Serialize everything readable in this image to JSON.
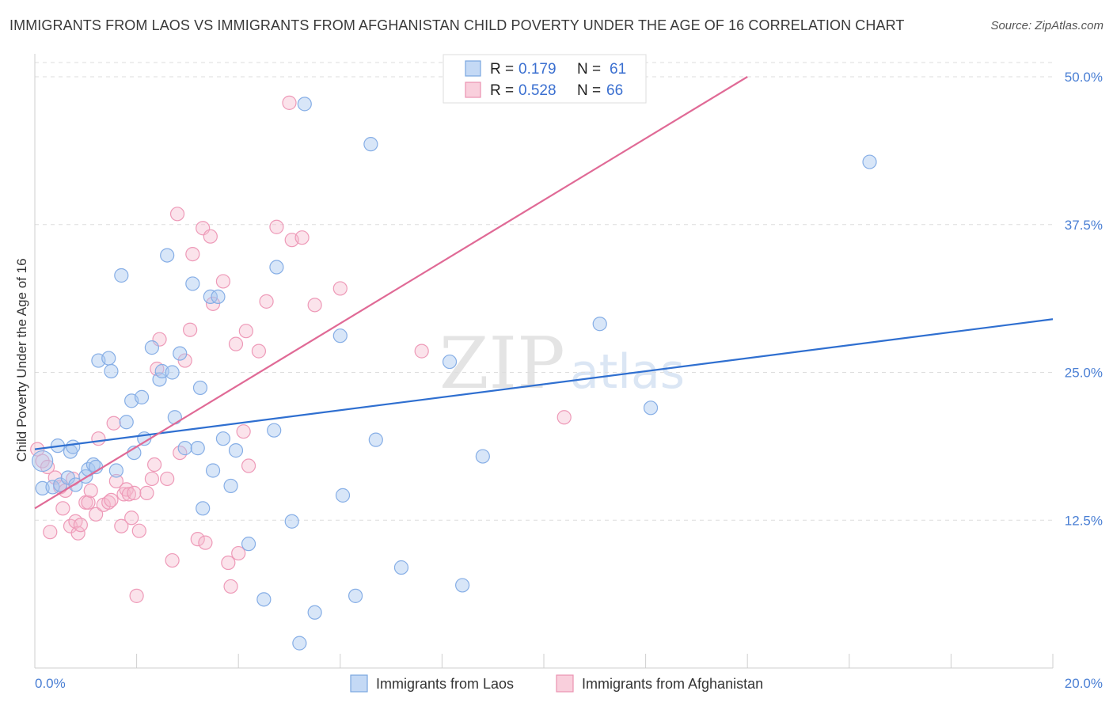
{
  "header": {
    "title": "IMMIGRANTS FROM LAOS VS IMMIGRANTS FROM AFGHANISTAN CHILD POVERTY UNDER THE AGE OF 16 CORRELATION CHART",
    "source": "Source: ZipAtlas.com"
  },
  "watermark": {
    "zip": "ZIP",
    "atlas": "atlas"
  },
  "chart_data": {
    "type": "scatter",
    "title": "IMMIGRANTS FROM LAOS VS IMMIGRANTS FROM AFGHANISTAN CHILD POVERTY UNDER THE AGE OF 16 CORRELATION CHART",
    "xlabel": "",
    "ylabel": "Child Poverty Under the Age of 16",
    "xlim": [
      0,
      20
    ],
    "ylim": [
      0,
      50
    ],
    "x_tick_labels": [
      "0.0%",
      "20.0%"
    ],
    "y_ticks": [
      12.5,
      25.0,
      37.5,
      50.0
    ],
    "y_tick_labels": [
      "12.5%",
      "25.0%",
      "37.5%",
      "50.0%"
    ],
    "grid": true,
    "legend_position": "top-center",
    "legend": [
      {
        "r_label": "R =",
        "r_value": "0.179",
        "n_label": "N =",
        "n_value": "61"
      },
      {
        "r_label": "R =",
        "r_value": "0.528",
        "n_label": "N =",
        "n_value": "66"
      }
    ],
    "series": [
      {
        "name": "Immigrants from Laos",
        "color": "#a8c8f0",
        "line_color": "#2f6fd0",
        "trend": {
          "x": [
            0,
            20
          ],
          "y": [
            18.5,
            29.5
          ]
        },
        "points": [
          [
            0.15,
            17.5
          ],
          [
            0.15,
            15.2
          ],
          [
            0.35,
            15.3
          ],
          [
            0.45,
            18.8
          ],
          [
            0.5,
            15.5
          ],
          [
            0.65,
            16.1
          ],
          [
            0.7,
            18.3
          ],
          [
            0.75,
            18.7
          ],
          [
            0.8,
            15.5
          ],
          [
            1.0,
            16.2
          ],
          [
            1.05,
            16.8
          ],
          [
            1.15,
            17.2
          ],
          [
            1.2,
            17.0
          ],
          [
            1.25,
            26.0
          ],
          [
            1.45,
            26.2
          ],
          [
            1.5,
            25.1
          ],
          [
            1.6,
            16.7
          ],
          [
            1.7,
            33.2
          ],
          [
            1.8,
            20.8
          ],
          [
            1.9,
            22.6
          ],
          [
            1.95,
            18.2
          ],
          [
            2.1,
            22.9
          ],
          [
            2.15,
            19.4
          ],
          [
            2.3,
            27.1
          ],
          [
            2.45,
            24.4
          ],
          [
            2.5,
            25.1
          ],
          [
            2.6,
            34.9
          ],
          [
            2.7,
            25.0
          ],
          [
            2.75,
            21.2
          ],
          [
            2.85,
            26.6
          ],
          [
            2.95,
            18.6
          ],
          [
            3.1,
            32.5
          ],
          [
            3.2,
            18.6
          ],
          [
            3.25,
            23.7
          ],
          [
            3.3,
            13.5
          ],
          [
            3.45,
            31.4
          ],
          [
            3.5,
            16.7
          ],
          [
            3.6,
            31.4
          ],
          [
            3.7,
            19.4
          ],
          [
            3.85,
            15.4
          ],
          [
            3.95,
            18.4
          ],
          [
            4.2,
            10.5
          ],
          [
            4.5,
            5.8
          ],
          [
            4.7,
            20.1
          ],
          [
            4.75,
            33.9
          ],
          [
            5.05,
            12.4
          ],
          [
            5.2,
            2.1
          ],
          [
            5.3,
            47.7
          ],
          [
            5.5,
            4.7
          ],
          [
            6.0,
            28.1
          ],
          [
            6.05,
            14.6
          ],
          [
            6.3,
            6.1
          ],
          [
            6.6,
            44.3
          ],
          [
            6.7,
            19.3
          ],
          [
            7.2,
            8.5
          ],
          [
            8.15,
            25.9
          ],
          [
            8.4,
            7.0
          ],
          [
            8.8,
            17.9
          ],
          [
            11.1,
            29.1
          ],
          [
            12.1,
            22.0
          ],
          [
            16.4,
            42.8
          ]
        ]
      },
      {
        "name": "Immigrants from Afghanistan",
        "color": "#f5b8cc",
        "line_color": "#e06a96",
        "trend": {
          "x": [
            0,
            14
          ],
          "y": [
            13.5,
            50.0
          ]
        },
        "points": [
          [
            0.05,
            18.5
          ],
          [
            0.15,
            17.5
          ],
          [
            0.25,
            17.0
          ],
          [
            0.3,
            11.5
          ],
          [
            0.4,
            16.1
          ],
          [
            0.5,
            15.3
          ],
          [
            0.55,
            13.5
          ],
          [
            0.6,
            15.0
          ],
          [
            0.7,
            12.0
          ],
          [
            0.75,
            16.0
          ],
          [
            0.8,
            12.4
          ],
          [
            0.85,
            11.4
          ],
          [
            0.9,
            12.1
          ],
          [
            1.0,
            14.0
          ],
          [
            1.05,
            14.0
          ],
          [
            1.1,
            15.0
          ],
          [
            1.2,
            13.0
          ],
          [
            1.25,
            19.4
          ],
          [
            1.35,
            13.8
          ],
          [
            1.45,
            14.0
          ],
          [
            1.5,
            14.2
          ],
          [
            1.55,
            20.7
          ],
          [
            1.6,
            15.8
          ],
          [
            1.7,
            12.0
          ],
          [
            1.75,
            14.7
          ],
          [
            1.8,
            15.1
          ],
          [
            1.85,
            14.7
          ],
          [
            1.9,
            12.7
          ],
          [
            1.95,
            14.8
          ],
          [
            2.0,
            6.1
          ],
          [
            2.05,
            11.6
          ],
          [
            2.2,
            14.8
          ],
          [
            2.3,
            16.0
          ],
          [
            2.35,
            17.2
          ],
          [
            2.4,
            25.3
          ],
          [
            2.45,
            27.8
          ],
          [
            2.6,
            16.0
          ],
          [
            2.7,
            9.1
          ],
          [
            2.8,
            38.4
          ],
          [
            2.85,
            18.2
          ],
          [
            2.95,
            26.0
          ],
          [
            3.05,
            28.6
          ],
          [
            3.1,
            35.0
          ],
          [
            3.2,
            10.9
          ],
          [
            3.3,
            37.2
          ],
          [
            3.35,
            10.6
          ],
          [
            3.45,
            36.5
          ],
          [
            3.5,
            30.8
          ],
          [
            3.7,
            32.7
          ],
          [
            3.8,
            8.9
          ],
          [
            3.85,
            6.9
          ],
          [
            3.95,
            27.4
          ],
          [
            4.0,
            9.7
          ],
          [
            4.1,
            20.0
          ],
          [
            4.15,
            28.5
          ],
          [
            4.2,
            17.1
          ],
          [
            4.4,
            26.8
          ],
          [
            4.55,
            31.0
          ],
          [
            4.75,
            37.3
          ],
          [
            5.0,
            47.8
          ],
          [
            5.05,
            36.2
          ],
          [
            5.25,
            36.4
          ],
          [
            5.5,
            30.7
          ],
          [
            6.0,
            32.1
          ],
          [
            7.6,
            26.8
          ],
          [
            10.4,
            21.2
          ]
        ]
      }
    ]
  }
}
